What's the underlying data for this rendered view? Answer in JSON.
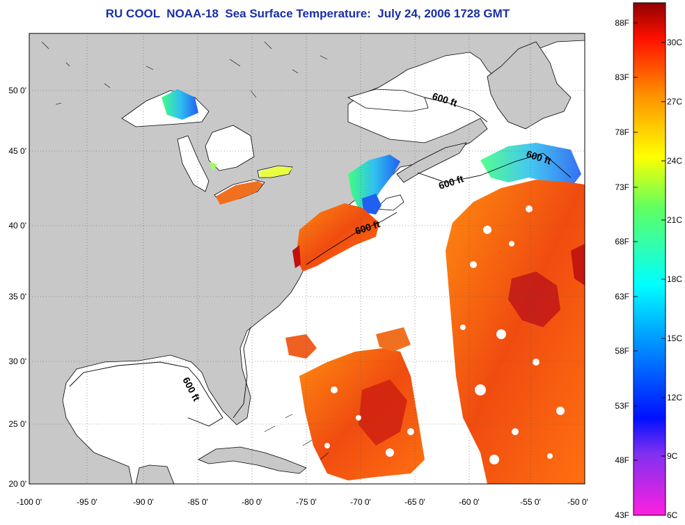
{
  "title": "RU COOL  NOAA-18  Sea Surface Temperature:  July 24, 2006 1728 GMT",
  "x_ticks": [
    "-100 0'",
    "-95 0'",
    "-90 0'",
    "-85 0'",
    "-80 0'",
    "-75 0'",
    "-70 0'",
    "-65 0'",
    "-60 0'",
    "-55 0'",
    "-50 0'"
  ],
  "y_ticks": [
    "50 0'",
    "45 0'",
    "40 0'",
    "35 0'",
    "30 0'",
    "25 0'",
    "20 0'"
  ],
  "depth_label": "600 ft",
  "colorbar": {
    "fahrenheit": [
      "88F",
      "83F",
      "78F",
      "73F",
      "68F",
      "63F",
      "58F",
      "53F",
      "48F",
      "43F"
    ],
    "celsius": [
      "30C",
      "27C",
      "24C",
      "21C",
      "18C",
      "15C",
      "12C",
      "9C",
      "6C"
    ]
  },
  "colors": {
    "land": "#c8c8c8",
    "ocean": "#ffffff",
    "title": "#1a2ea8",
    "warm": "#f04010",
    "hot": "#d01010",
    "cool": "#30a8f0",
    "cold": "#1040e0"
  }
}
